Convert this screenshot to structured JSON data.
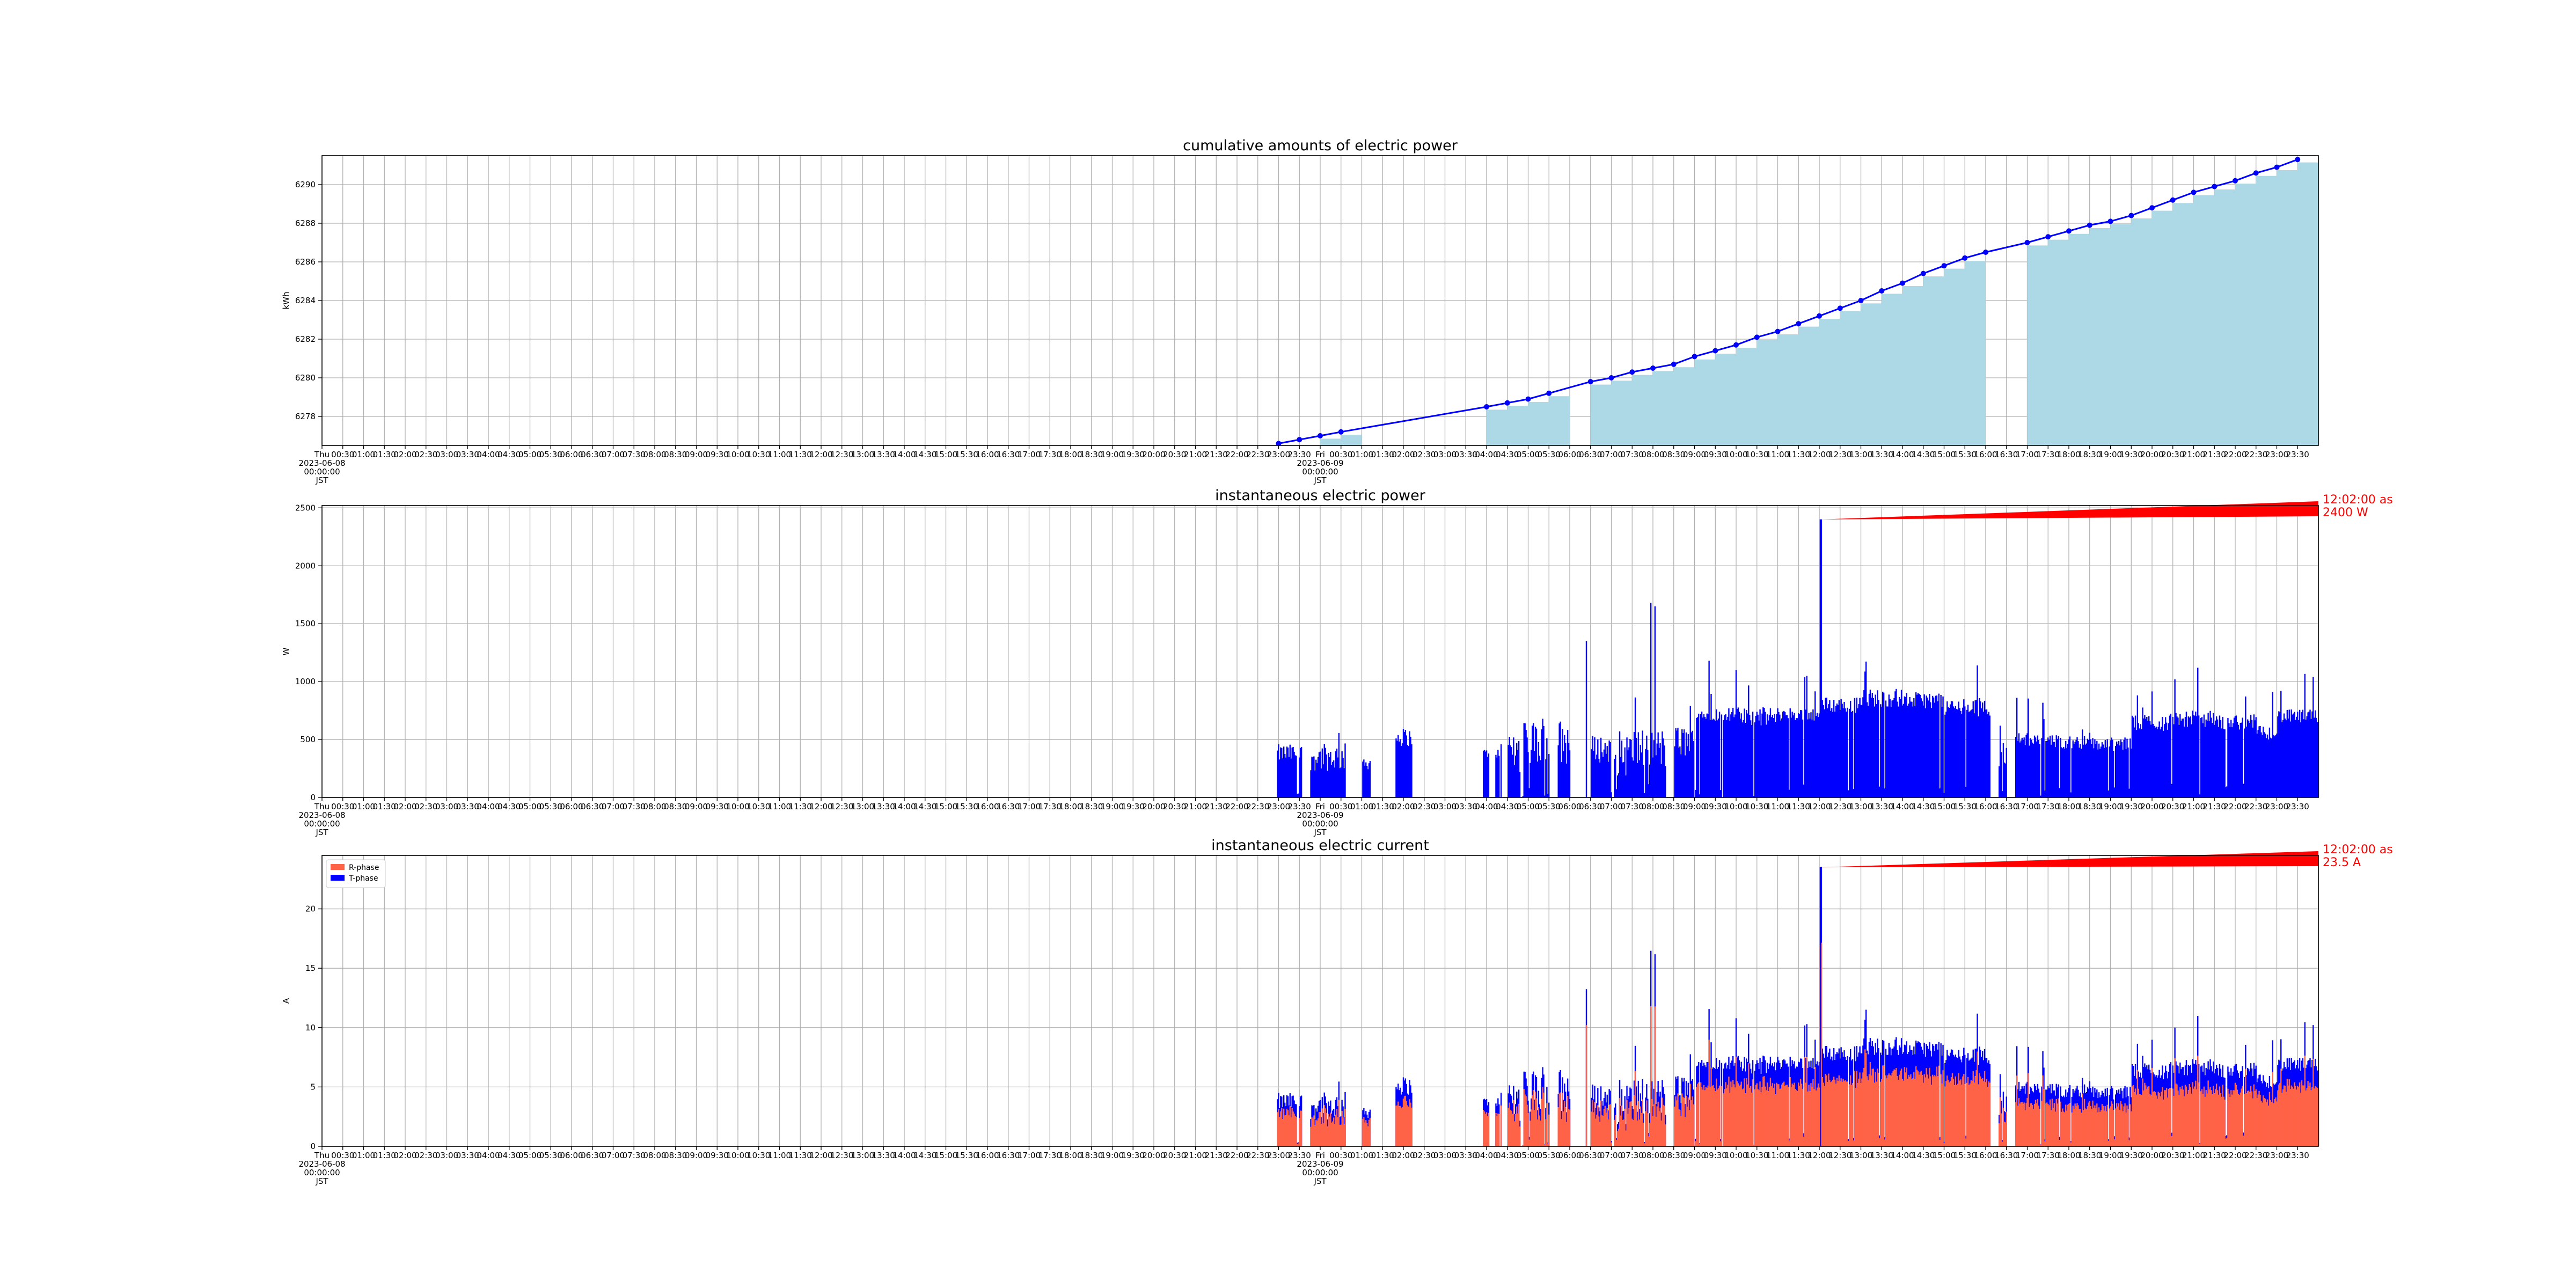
{
  "chart_data": [
    {
      "type": "area",
      "title": "cumulative amounts of electric power",
      "ylabel": "kWh",
      "ylim": [
        6276.5,
        6291.5
      ],
      "yticks": [
        6278,
        6280,
        6282,
        6284,
        6286,
        6288,
        6290
      ],
      "xlim": [
        0,
        48
      ],
      "grid": true,
      "color": "#0000ff",
      "fill_color": "#add8e6",
      "series": [
        {
          "x": [
            23.0,
            23.5,
            24.0,
            24.5,
            28.0,
            28.5,
            29.0,
            29.5,
            30.5,
            31.0,
            31.5,
            32.0,
            32.5,
            33.0,
            33.5,
            34.0,
            34.5,
            35.0,
            35.5,
            36.0,
            36.5,
            37.0,
            37.5,
            38.0,
            38.5,
            39.0,
            39.5,
            40.0,
            41.0,
            41.5,
            42.0,
            42.5,
            43.0,
            43.5,
            44.0,
            44.5,
            45.0,
            45.5,
            46.0,
            46.5,
            47.0,
            47.5
          ],
          "values": [
            6276.6,
            6276.8,
            6277.0,
            6277.2,
            6278.5,
            6278.7,
            6278.9,
            6279.2,
            6279.8,
            6280.0,
            6280.3,
            6280.5,
            6280.7,
            6281.1,
            6281.4,
            6281.7,
            6282.1,
            6282.4,
            6282.8,
            6283.2,
            6283.6,
            6284.0,
            6284.5,
            6284.9,
            6285.4,
            6285.8,
            6286.2,
            6286.5,
            6287.0,
            6287.3,
            6287.6,
            6287.9,
            6288.1,
            6288.4,
            6288.8,
            6289.2,
            6289.6,
            6289.9,
            6290.2,
            6290.6,
            6290.9,
            6291.3
          ]
        }
      ],
      "fill_segments": [
        [
          24.0,
          25.0
        ],
        [
          28.0,
          30.0
        ],
        [
          30.5,
          40.0
        ],
        [
          41.0,
          48.0
        ]
      ]
    },
    {
      "type": "bar",
      "title": "instantaneous electric power",
      "ylabel": "W",
      "ylim": [
        0,
        2520
      ],
      "yticks": [
        0,
        500,
        1000,
        1500,
        2000,
        2500
      ],
      "xlim": [
        0,
        48
      ],
      "grid": true,
      "color": "#0000ff",
      "annotation": {
        "text": [
          "12:02:00 as",
          "2400 W"
        ],
        "color": "#ff0000",
        "x": 36.03,
        "y": 2400
      }
    },
    {
      "type": "bar",
      "title": "instantaneous electric current",
      "ylabel": "A",
      "ylim": [
        0,
        24.5
      ],
      "yticks": [
        0,
        5,
        10,
        15,
        20
      ],
      "xlim": [
        0,
        48
      ],
      "grid": true,
      "legend_position": "top-left",
      "series": [
        {
          "name": "R-phase",
          "color": "#ff6347"
        },
        {
          "name": "T-phase",
          "color": "#0000ff"
        }
      ],
      "annotation": {
        "text": [
          "12:02:00 as",
          "23.5 A"
        ],
        "color": "#ff0000",
        "x": 36.03,
        "y": 23.5
      }
    }
  ],
  "x_axis": {
    "tick_labels": [
      "Thu\n2023-06-08\n00:00:00\nJST",
      "00:30",
      "01:00",
      "01:30",
      "02:00",
      "02:30",
      "03:00",
      "03:30",
      "04:00",
      "04:30",
      "05:00",
      "05:30",
      "06:00",
      "06:30",
      "07:00",
      "07:30",
      "08:00",
      "08:30",
      "09:00",
      "09:30",
      "10:00",
      "10:30",
      "11:00",
      "11:30",
      "12:00",
      "12:30",
      "13:00",
      "13:30",
      "14:00",
      "14:30",
      "15:00",
      "15:30",
      "16:00",
      "16:30",
      "17:00",
      "17:30",
      "18:00",
      "18:30",
      "19:00",
      "19:30",
      "20:00",
      "20:30",
      "21:00",
      "21:30",
      "22:00",
      "22:30",
      "23:00",
      "23:30",
      "Fri\n2023-06-09\n00:00:00\nJST",
      "00:30",
      "01:00",
      "01:30",
      "02:00",
      "02:30",
      "03:00",
      "03:30",
      "04:00",
      "04:30",
      "05:00",
      "05:30",
      "06:00",
      "06:30",
      "07:00",
      "07:30",
      "08:00",
      "08:30",
      "09:00",
      "09:30",
      "10:00",
      "10:30",
      "11:00",
      "11:30",
      "12:00",
      "12:30",
      "13:00",
      "13:30",
      "14:00",
      "14:30",
      "15:00",
      "15:30",
      "16:00",
      "16:30",
      "17:00",
      "17:30",
      "18:00",
      "18:30",
      "19:00",
      "19:30",
      "20:00",
      "20:30",
      "21:00",
      "21:30",
      "22:00",
      "22:30",
      "23:00",
      "23:30"
    ]
  }
}
